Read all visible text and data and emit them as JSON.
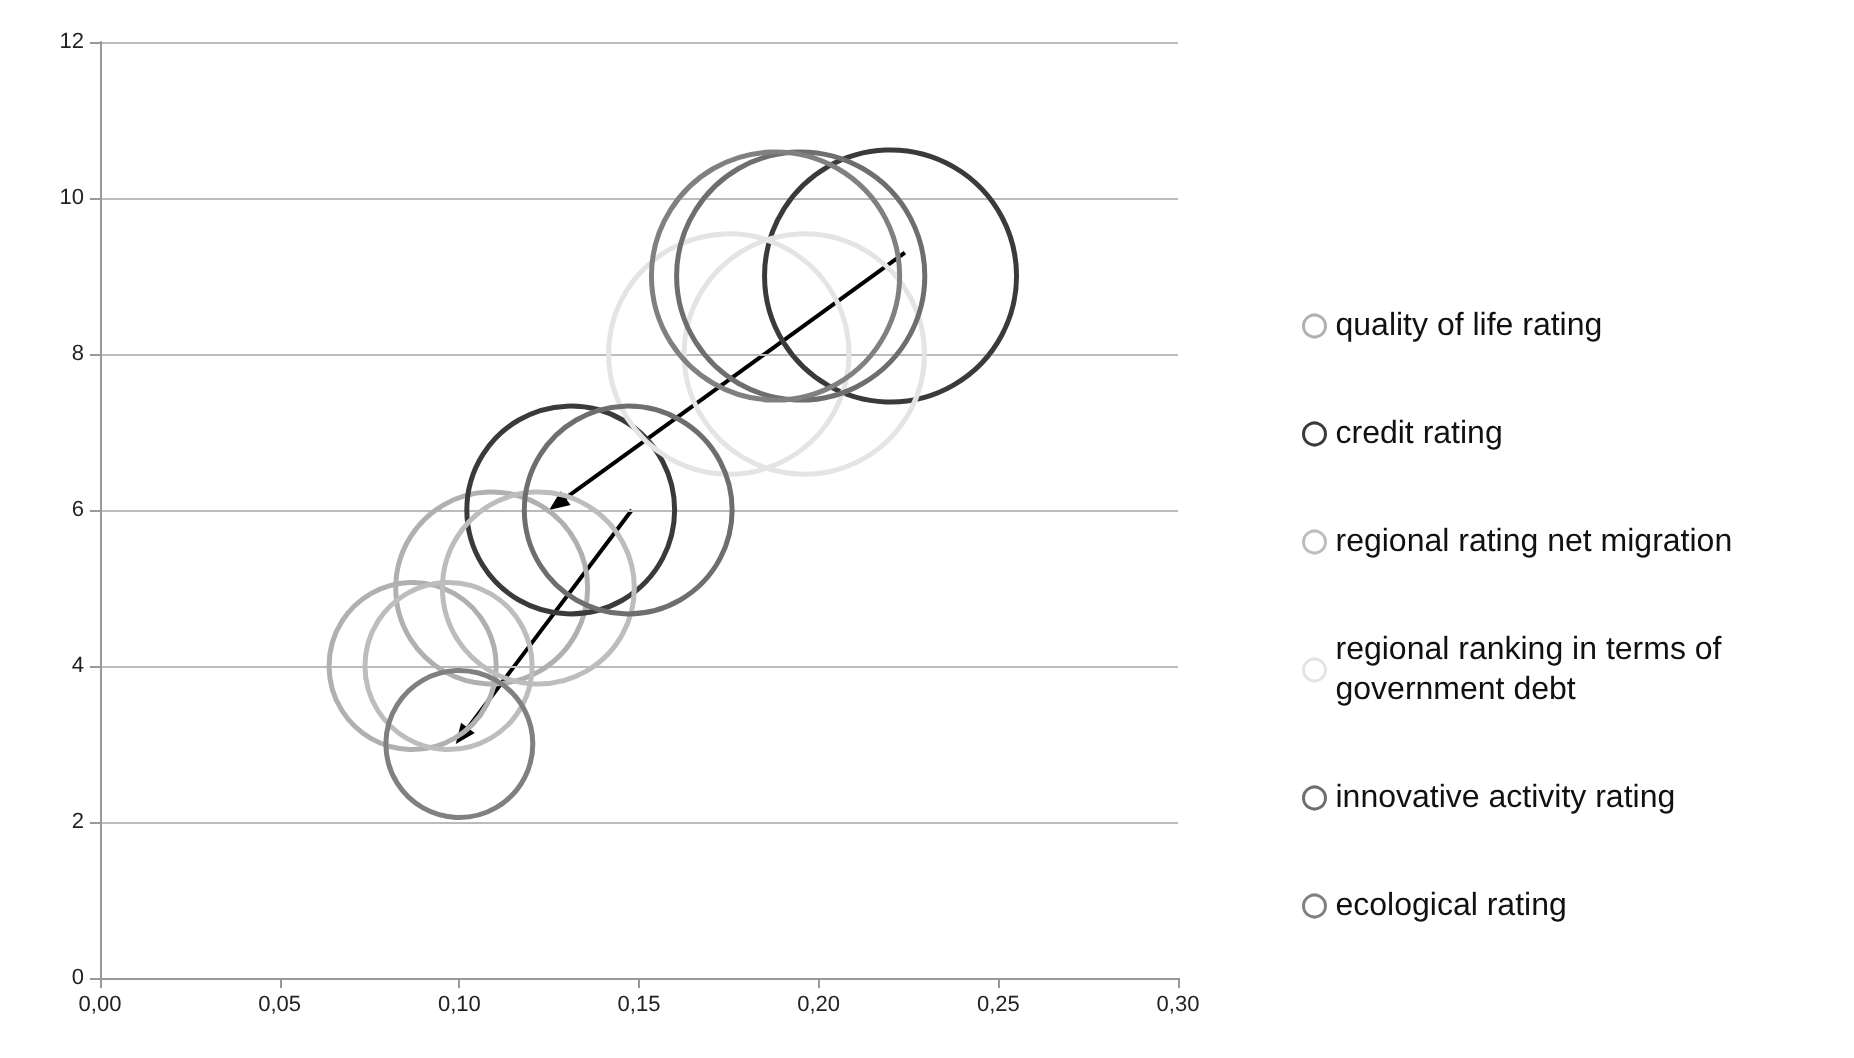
{
  "chart_data": {
    "type": "bubble",
    "xlim": [
      0,
      0.3
    ],
    "ylim": [
      0,
      12
    ],
    "xticks": [
      {
        "value": 0,
        "label": "0,00"
      },
      {
        "value": 0.05,
        "label": "0,05"
      },
      {
        "value": 0.1,
        "label": "0,10"
      },
      {
        "value": 0.15,
        "label": "0,15"
      },
      {
        "value": 0.2,
        "label": "0,20"
      },
      {
        "value": 0.25,
        "label": "0,25"
      },
      {
        "value": 0.3,
        "label": "0,30"
      }
    ],
    "yticks": [
      0,
      2,
      4,
      6,
      8,
      10,
      12
    ],
    "grid": "y",
    "legend": "right",
    "marker": "circle",
    "series": [
      {
        "name": "quality of life rating",
        "color": "#b0b0b0",
        "x": [
          0.109,
          0.087
        ],
        "values": [
          5,
          4
        ],
        "sizes": [
          0.58,
          0.44
        ]
      },
      {
        "name": "credit rating",
        "color": "#3a3a3a",
        "x": [
          0.22,
          0.131
        ],
        "values": [
          9,
          6
        ],
        "sizes": [
          1,
          0.68
        ]
      },
      {
        "name": "regional rating net migration",
        "color": "#bdbdbd",
        "x": [
          0.122,
          0.097
        ],
        "values": [
          5,
          4
        ],
        "sizes": [
          0.58,
          0.44
        ]
      },
      {
        "name": "regional ranking in terms of government debt",
        "color": "#e4e4e4",
        "x": [
          0.175,
          0.196
        ],
        "values": [
          8,
          8
        ],
        "sizes": [
          0.91,
          0.91
        ]
      },
      {
        "name": "innovative activity rating",
        "color": "#6e6e6e",
        "x": [
          0.195,
          0.147
        ],
        "values": [
          9,
          6
        ],
        "sizes": [
          0.97,
          0.68
        ]
      },
      {
        "name": "ecological rating",
        "color": "#808080",
        "x": [
          0.188,
          0.1
        ],
        "values": [
          9,
          3
        ],
        "sizes": [
          0.97,
          0.34
        ]
      }
    ]
  }
}
